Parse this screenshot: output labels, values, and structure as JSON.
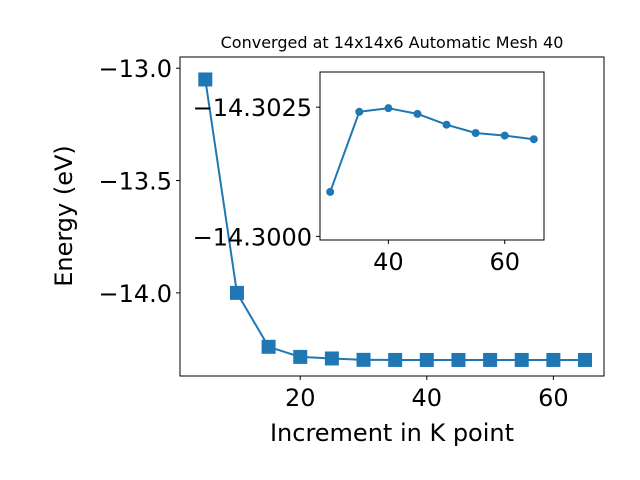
{
  "chart_data": [
    {
      "type": "line",
      "title": "Converged at 14x14x6 Automatic Mesh 40",
      "xlabel": "Increment in K point",
      "ylabel": "Energy (eV)",
      "xlim": [
        1,
        68
      ],
      "ylim": [
        -14.37,
        -12.95
      ],
      "x_ticks": [
        20,
        40,
        60
      ],
      "y_ticks": [
        -13.0,
        -13.5,
        -14.0
      ],
      "x_tick_labels": [
        "20",
        "40",
        "60"
      ],
      "y_tick_labels": [
        "−13.0",
        "−13.5",
        "−14.0"
      ],
      "marker": "square",
      "color": "#1f77b4",
      "series": [
        {
          "x": [
            5,
            10,
            15,
            20,
            25,
            30,
            35,
            40,
            45,
            50,
            55,
            60,
            65
          ],
          "y": [
            -13.05,
            -14.0,
            -14.24,
            -14.285,
            -14.292,
            -14.298,
            -14.2985,
            -14.2986,
            -14.2986,
            -14.2985,
            -14.2985,
            -14.2985,
            -14.2985
          ]
        }
      ]
    },
    {
      "type": "line",
      "title": "",
      "xlabel": "",
      "ylabel": "",
      "xlim": [
        28.25,
        66.75
      ],
      "ylim": [
        -14.29993,
        -14.30318
      ],
      "x_ticks": [
        40,
        60
      ],
      "y_ticks": [
        -14.3025,
        -14.3
      ],
      "x_tick_labels": [
        "40",
        "60"
      ],
      "y_tick_labels": [
        "−14.3025",
        "−14.3000"
      ],
      "marker": "circle",
      "color": "#1f77b4",
      "series": [
        {
          "x": [
            30,
            35,
            40,
            45,
            50,
            55,
            60,
            65
          ],
          "y": [
            -14.30086,
            -14.30241,
            -14.30248,
            -14.30237,
            -14.30216,
            -14.302,
            -14.30195,
            -14.30188
          ]
        }
      ]
    }
  ]
}
